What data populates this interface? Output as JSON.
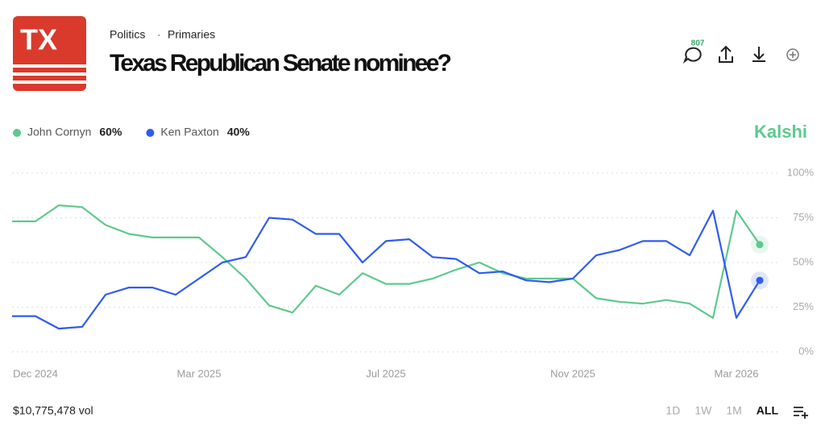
{
  "header": {
    "logo": "TX",
    "category": "Politics",
    "subcategory": "Primaries",
    "comments": "807"
  },
  "brand": "Kalshi",
  "footer": {
    "volume": "$10,775,478 vol",
    "ranges": [
      "1D",
      "1W",
      "1M",
      "ALL"
    ]
  },
  "chart_data": {
    "type": "line",
    "title": "Texas Republican Senate nominee?",
    "x": [
      null,
      "Dec 2024",
      null,
      null,
      null,
      null,
      null,
      null,
      "Mar 2025",
      null,
      null,
      null,
      null,
      null,
      null,
      null,
      "Jul 2025",
      null,
      null,
      null,
      null,
      null,
      null,
      null,
      "Nov 2025",
      null,
      null,
      null,
      null,
      null,
      null,
      "Mar 2026",
      null
    ],
    "series": [
      {
        "name": "John Cornyn",
        "color": "#5ec98e",
        "legend_value": "60%",
        "values": [
          73,
          73,
          82,
          81,
          71,
          66,
          64,
          64,
          64,
          53,
          41,
          26,
          22,
          37,
          32,
          44,
          38,
          38,
          41,
          46,
          50,
          44,
          41,
          41,
          41,
          30,
          28,
          27,
          29,
          27,
          19,
          79,
          60
        ]
      },
      {
        "name": "Ken Paxton",
        "color": "#2f5cf0",
        "legend_value": "40%",
        "values": [
          20,
          20,
          13,
          14,
          32,
          36,
          36,
          32,
          41,
          50,
          53,
          75,
          74,
          66,
          66,
          50,
          62,
          63,
          53,
          52,
          44,
          45,
          40,
          39,
          41,
          54,
          57,
          62,
          62,
          54,
          79,
          19,
          40
        ]
      }
    ],
    "ylim": [
      0,
      100
    ],
    "yticks": [
      {
        "value": 0,
        "label": "0%"
      },
      {
        "value": 25,
        "label": "25%"
      },
      {
        "value": 50,
        "label": "50%"
      },
      {
        "value": 75,
        "label": "75%"
      },
      {
        "value": 100,
        "label": "100%"
      }
    ],
    "grid": true
  }
}
